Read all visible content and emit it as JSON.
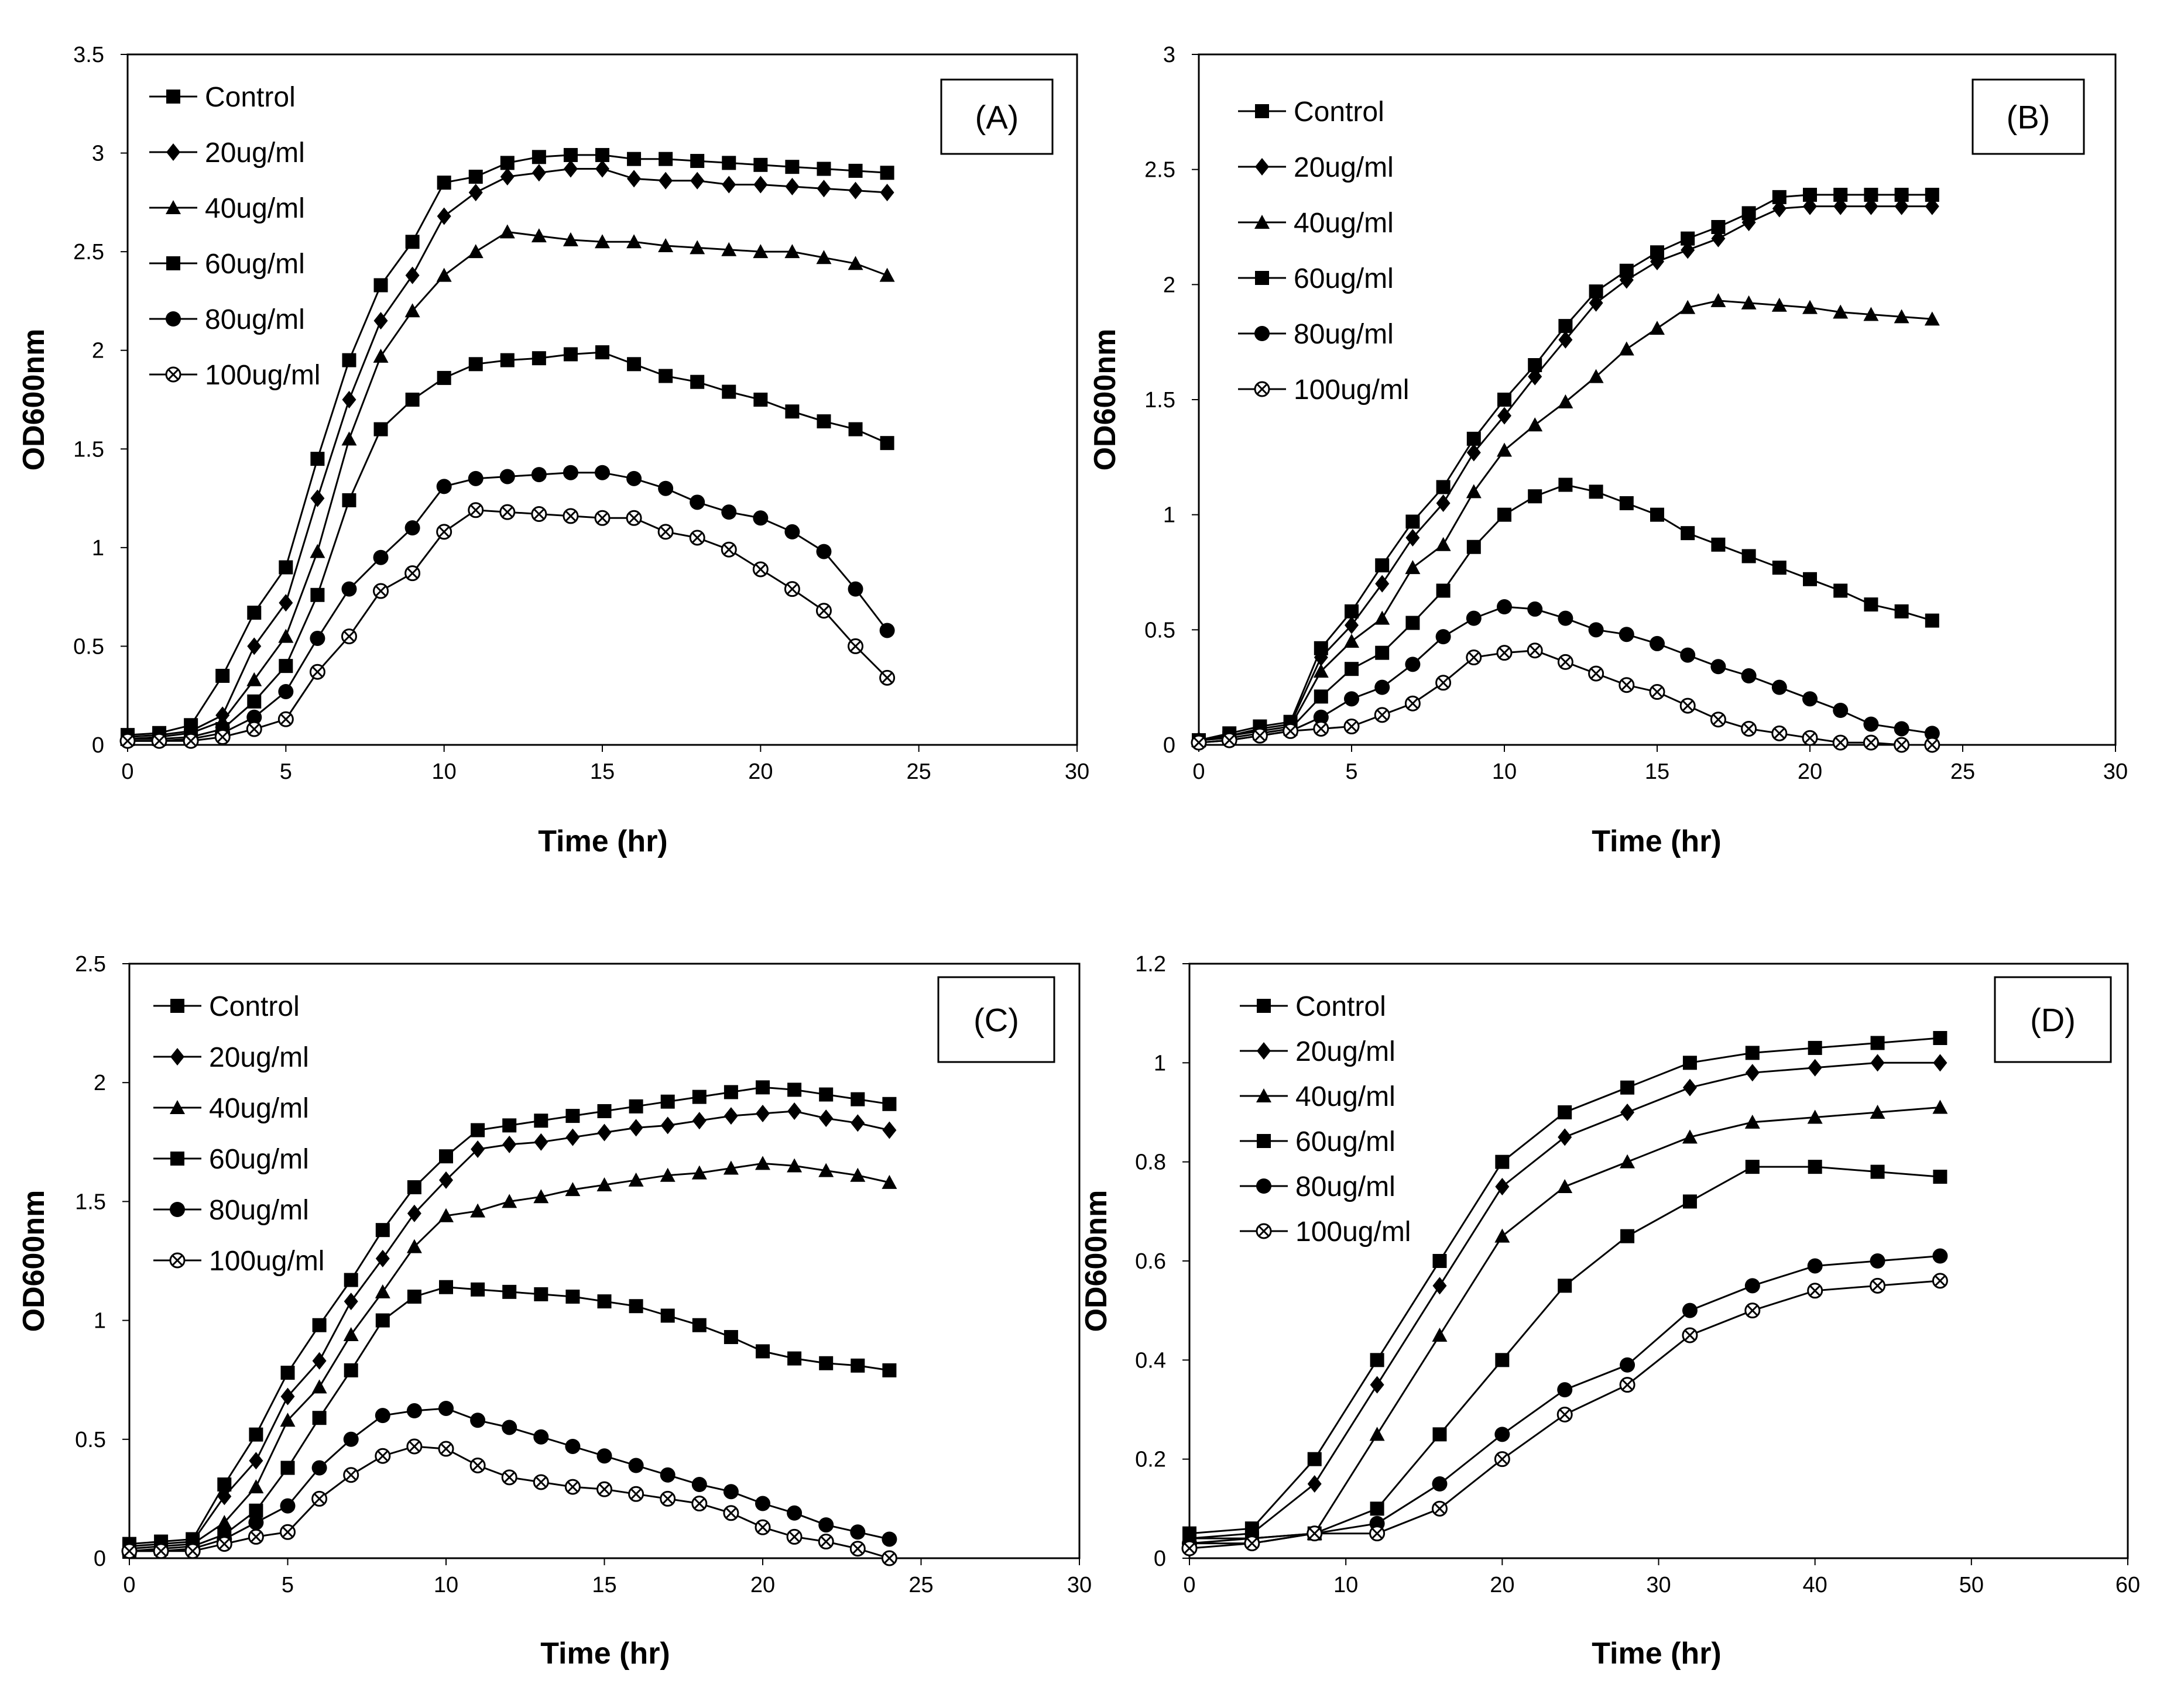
{
  "chart_data": [
    {
      "type": "line",
      "panel_label": "(A)",
      "xlabel": "Time (hr)",
      "ylabel": "OD600nm",
      "xlim": [
        0,
        30
      ],
      "ylim": [
        0,
        3.5
      ],
      "xticks": [
        0,
        5,
        10,
        15,
        20,
        25,
        30
      ],
      "yticks": [
        0,
        0.5,
        1,
        1.5,
        2,
        2.5,
        3,
        3.5
      ],
      "x": [
        0,
        1,
        2,
        3,
        4,
        5,
        6,
        7,
        8,
        9,
        10,
        11,
        12,
        13,
        14,
        15,
        16,
        17,
        18,
        19,
        20,
        21,
        22,
        23,
        24
      ],
      "series": [
        {
          "name": "Control",
          "marker": "square",
          "values": [
            0.05,
            0.06,
            0.1,
            0.35,
            0.67,
            0.9,
            1.45,
            1.95,
            2.33,
            2.55,
            2.85,
            2.88,
            2.95,
            2.98,
            2.99,
            2.99,
            2.97,
            2.97,
            2.96,
            2.95,
            2.94,
            2.93,
            2.92,
            2.91,
            2.9
          ]
        },
        {
          "name": "20ug/ml",
          "marker": "diamond",
          "values": [
            0.04,
            0.05,
            0.07,
            0.15,
            0.5,
            0.72,
            1.25,
            1.75,
            2.15,
            2.38,
            2.68,
            2.8,
            2.88,
            2.9,
            2.92,
            2.92,
            2.87,
            2.86,
            2.86,
            2.84,
            2.84,
            2.83,
            2.82,
            2.81,
            2.8
          ]
        },
        {
          "name": "40ug/ml",
          "marker": "triangle",
          "values": [
            0.03,
            0.04,
            0.06,
            0.12,
            0.33,
            0.55,
            0.98,
            1.55,
            1.97,
            2.2,
            2.38,
            2.5,
            2.6,
            2.58,
            2.56,
            2.55,
            2.55,
            2.53,
            2.52,
            2.51,
            2.5,
            2.5,
            2.47,
            2.44,
            2.38
          ]
        },
        {
          "name": "60ug/ml",
          "marker": "square",
          "values": [
            0.03,
            0.03,
            0.04,
            0.08,
            0.22,
            0.4,
            0.76,
            1.24,
            1.6,
            1.75,
            1.86,
            1.93,
            1.95,
            1.96,
            1.98,
            1.99,
            1.93,
            1.87,
            1.84,
            1.79,
            1.75,
            1.69,
            1.64,
            1.6,
            1.53
          ]
        },
        {
          "name": "80ug/ml",
          "marker": "circle",
          "values": [
            0.02,
            0.02,
            0.03,
            0.06,
            0.14,
            0.27,
            0.54,
            0.79,
            0.95,
            1.1,
            1.31,
            1.35,
            1.36,
            1.37,
            1.38,
            1.38,
            1.35,
            1.3,
            1.23,
            1.18,
            1.15,
            1.08,
            0.98,
            0.79,
            0.58
          ]
        },
        {
          "name": "100ug/ml",
          "marker": "x-circle",
          "values": [
            0.02,
            0.02,
            0.02,
            0.04,
            0.08,
            0.13,
            0.37,
            0.55,
            0.78,
            0.87,
            1.08,
            1.19,
            1.18,
            1.17,
            1.16,
            1.15,
            1.15,
            1.08,
            1.05,
            0.99,
            0.89,
            0.79,
            0.68,
            0.5,
            0.34
          ]
        }
      ]
    },
    {
      "type": "line",
      "panel_label": "(B)",
      "xlabel": "Time (hr)",
      "ylabel": "OD600nm",
      "xlim": [
        0,
        30
      ],
      "ylim": [
        0,
        3
      ],
      "xticks": [
        0,
        5,
        10,
        15,
        20,
        25,
        30
      ],
      "yticks": [
        0,
        0.5,
        1,
        1.5,
        2,
        2.5,
        3
      ],
      "x": [
        0,
        1,
        2,
        3,
        4,
        5,
        6,
        7,
        8,
        9,
        10,
        11,
        12,
        13,
        14,
        15,
        16,
        17,
        18,
        19,
        20,
        21,
        22,
        23,
        24
      ],
      "series": [
        {
          "name": "Control",
          "marker": "square",
          "values": [
            0.02,
            0.05,
            0.08,
            0.1,
            0.42,
            0.58,
            0.78,
            0.97,
            1.12,
            1.33,
            1.5,
            1.65,
            1.82,
            1.97,
            2.06,
            2.14,
            2.2,
            2.25,
            2.31,
            2.38,
            2.39,
            2.39,
            2.39,
            2.39,
            2.39
          ]
        },
        {
          "name": "20ug/ml",
          "marker": "diamond",
          "values": [
            0.02,
            0.04,
            0.07,
            0.09,
            0.38,
            0.52,
            0.7,
            0.9,
            1.05,
            1.27,
            1.43,
            1.6,
            1.76,
            1.92,
            2.02,
            2.1,
            2.15,
            2.2,
            2.27,
            2.33,
            2.34,
            2.34,
            2.34,
            2.34,
            2.34
          ]
        },
        {
          "name": "40ug/ml",
          "marker": "triangle",
          "values": [
            0.02,
            0.04,
            0.06,
            0.08,
            0.32,
            0.45,
            0.55,
            0.77,
            0.87,
            1.1,
            1.28,
            1.39,
            1.49,
            1.6,
            1.72,
            1.81,
            1.9,
            1.93,
            1.92,
            1.91,
            1.9,
            1.88,
            1.87,
            1.86,
            1.85
          ]
        },
        {
          "name": "60ug/ml",
          "marker": "square",
          "values": [
            0.02,
            0.03,
            0.05,
            0.07,
            0.21,
            0.33,
            0.4,
            0.53,
            0.67,
            0.86,
            1.0,
            1.08,
            1.13,
            1.1,
            1.05,
            1.0,
            0.92,
            0.87,
            0.82,
            0.77,
            0.72,
            0.67,
            0.61,
            0.58,
            0.54
          ]
        },
        {
          "name": "80ug/ml",
          "marker": "circle",
          "values": [
            0.01,
            0.02,
            0.04,
            0.06,
            0.12,
            0.2,
            0.25,
            0.35,
            0.47,
            0.55,
            0.6,
            0.59,
            0.55,
            0.5,
            0.48,
            0.44,
            0.39,
            0.34,
            0.3,
            0.25,
            0.2,
            0.15,
            0.09,
            0.07,
            0.05
          ]
        },
        {
          "name": "100ug/ml",
          "marker": "x-circle",
          "values": [
            0.01,
            0.02,
            0.04,
            0.06,
            0.07,
            0.08,
            0.13,
            0.18,
            0.27,
            0.38,
            0.4,
            0.41,
            0.36,
            0.31,
            0.26,
            0.23,
            0.17,
            0.11,
            0.07,
            0.05,
            0.03,
            0.01,
            0.01,
            0.0,
            0.0
          ]
        }
      ]
    },
    {
      "type": "line",
      "panel_label": "(C)",
      "xlabel": "Time (hr)",
      "ylabel": "OD600nm",
      "xlim": [
        0,
        30
      ],
      "ylim": [
        0,
        2.5
      ],
      "xticks": [
        0,
        5,
        10,
        15,
        20,
        25,
        30
      ],
      "yticks": [
        0,
        0.5,
        1,
        1.5,
        2,
        2.5
      ],
      "x": [
        0,
        1,
        2,
        3,
        4,
        5,
        6,
        7,
        8,
        9,
        10,
        11,
        12,
        13,
        14,
        15,
        16,
        17,
        18,
        19,
        20,
        21,
        22,
        23,
        24
      ],
      "series": [
        {
          "name": "Control",
          "marker": "square",
          "values": [
            0.06,
            0.07,
            0.08,
            0.31,
            0.52,
            0.78,
            0.98,
            1.17,
            1.38,
            1.56,
            1.69,
            1.8,
            1.82,
            1.84,
            1.86,
            1.88,
            1.9,
            1.92,
            1.94,
            1.96,
            1.98,
            1.97,
            1.95,
            1.93,
            1.91
          ]
        },
        {
          "name": "20ug/ml",
          "marker": "diamond",
          "values": [
            0.05,
            0.06,
            0.07,
            0.26,
            0.41,
            0.68,
            0.83,
            1.08,
            1.26,
            1.45,
            1.59,
            1.72,
            1.74,
            1.75,
            1.77,
            1.79,
            1.81,
            1.82,
            1.84,
            1.86,
            1.87,
            1.88,
            1.85,
            1.83,
            1.8
          ]
        },
        {
          "name": "40ug/ml",
          "marker": "triangle",
          "values": [
            0.04,
            0.05,
            0.06,
            0.15,
            0.3,
            0.58,
            0.72,
            0.94,
            1.12,
            1.31,
            1.44,
            1.46,
            1.5,
            1.52,
            1.55,
            1.57,
            1.59,
            1.61,
            1.62,
            1.64,
            1.66,
            1.65,
            1.63,
            1.61,
            1.58
          ]
        },
        {
          "name": "60ug/ml",
          "marker": "square",
          "values": [
            0.03,
            0.04,
            0.05,
            0.1,
            0.2,
            0.38,
            0.59,
            0.79,
            1.0,
            1.1,
            1.14,
            1.13,
            1.12,
            1.11,
            1.1,
            1.08,
            1.06,
            1.02,
            0.98,
            0.93,
            0.87,
            0.84,
            0.82,
            0.81,
            0.79
          ]
        },
        {
          "name": "80ug/ml",
          "marker": "circle",
          "values": [
            0.03,
            0.03,
            0.04,
            0.08,
            0.15,
            0.22,
            0.38,
            0.5,
            0.6,
            0.62,
            0.63,
            0.58,
            0.55,
            0.51,
            0.47,
            0.43,
            0.39,
            0.35,
            0.31,
            0.28,
            0.23,
            0.19,
            0.14,
            0.11,
            0.08
          ]
        },
        {
          "name": "100ug/ml",
          "marker": "x-circle",
          "values": [
            0.03,
            0.03,
            0.03,
            0.06,
            0.09,
            0.11,
            0.25,
            0.35,
            0.43,
            0.47,
            0.46,
            0.39,
            0.34,
            0.32,
            0.3,
            0.29,
            0.27,
            0.25,
            0.23,
            0.19,
            0.13,
            0.09,
            0.07,
            0.04,
            0.0
          ]
        }
      ]
    },
    {
      "type": "line",
      "panel_label": "(D)",
      "xlabel": "Time (hr)",
      "ylabel": "OD600nm",
      "xlim": [
        0,
        60
      ],
      "ylim": [
        0,
        1.2
      ],
      "xticks": [
        0,
        10,
        20,
        30,
        40,
        50,
        60
      ],
      "yticks": [
        0,
        0.2,
        0.4,
        0.6,
        0.8,
        1,
        1.2
      ],
      "x": [
        0,
        4,
        8,
        12,
        16,
        20,
        24,
        28,
        32,
        36,
        40,
        44,
        48
      ],
      "series": [
        {
          "name": "Control",
          "marker": "square",
          "values": [
            0.05,
            0.06,
            0.2,
            0.4,
            0.6,
            0.8,
            0.9,
            0.95,
            1.0,
            1.02,
            1.03,
            1.04,
            1.05
          ]
        },
        {
          "name": "20ug/ml",
          "marker": "diamond",
          "values": [
            0.04,
            0.05,
            0.15,
            0.35,
            0.55,
            0.75,
            0.85,
            0.9,
            0.95,
            0.98,
            0.99,
            1.0,
            1.0
          ]
        },
        {
          "name": "40ug/ml",
          "marker": "triangle",
          "values": [
            0.04,
            0.04,
            0.05,
            0.25,
            0.45,
            0.65,
            0.75,
            0.8,
            0.85,
            0.88,
            0.89,
            0.9,
            0.91
          ]
        },
        {
          "name": "60ug/ml",
          "marker": "square",
          "values": [
            0.03,
            0.04,
            0.05,
            0.1,
            0.25,
            0.4,
            0.55,
            0.65,
            0.72,
            0.79,
            0.79,
            0.78,
            0.77
          ]
        },
        {
          "name": "80ug/ml",
          "marker": "circle",
          "values": [
            0.03,
            0.03,
            0.05,
            0.07,
            0.15,
            0.25,
            0.34,
            0.39,
            0.5,
            0.55,
            0.59,
            0.6,
            0.61
          ]
        },
        {
          "name": "100ug/ml",
          "marker": "x-circle",
          "values": [
            0.02,
            0.03,
            0.05,
            0.05,
            0.1,
            0.2,
            0.29,
            0.35,
            0.45,
            0.5,
            0.54,
            0.55,
            0.56
          ]
        }
      ]
    }
  ]
}
